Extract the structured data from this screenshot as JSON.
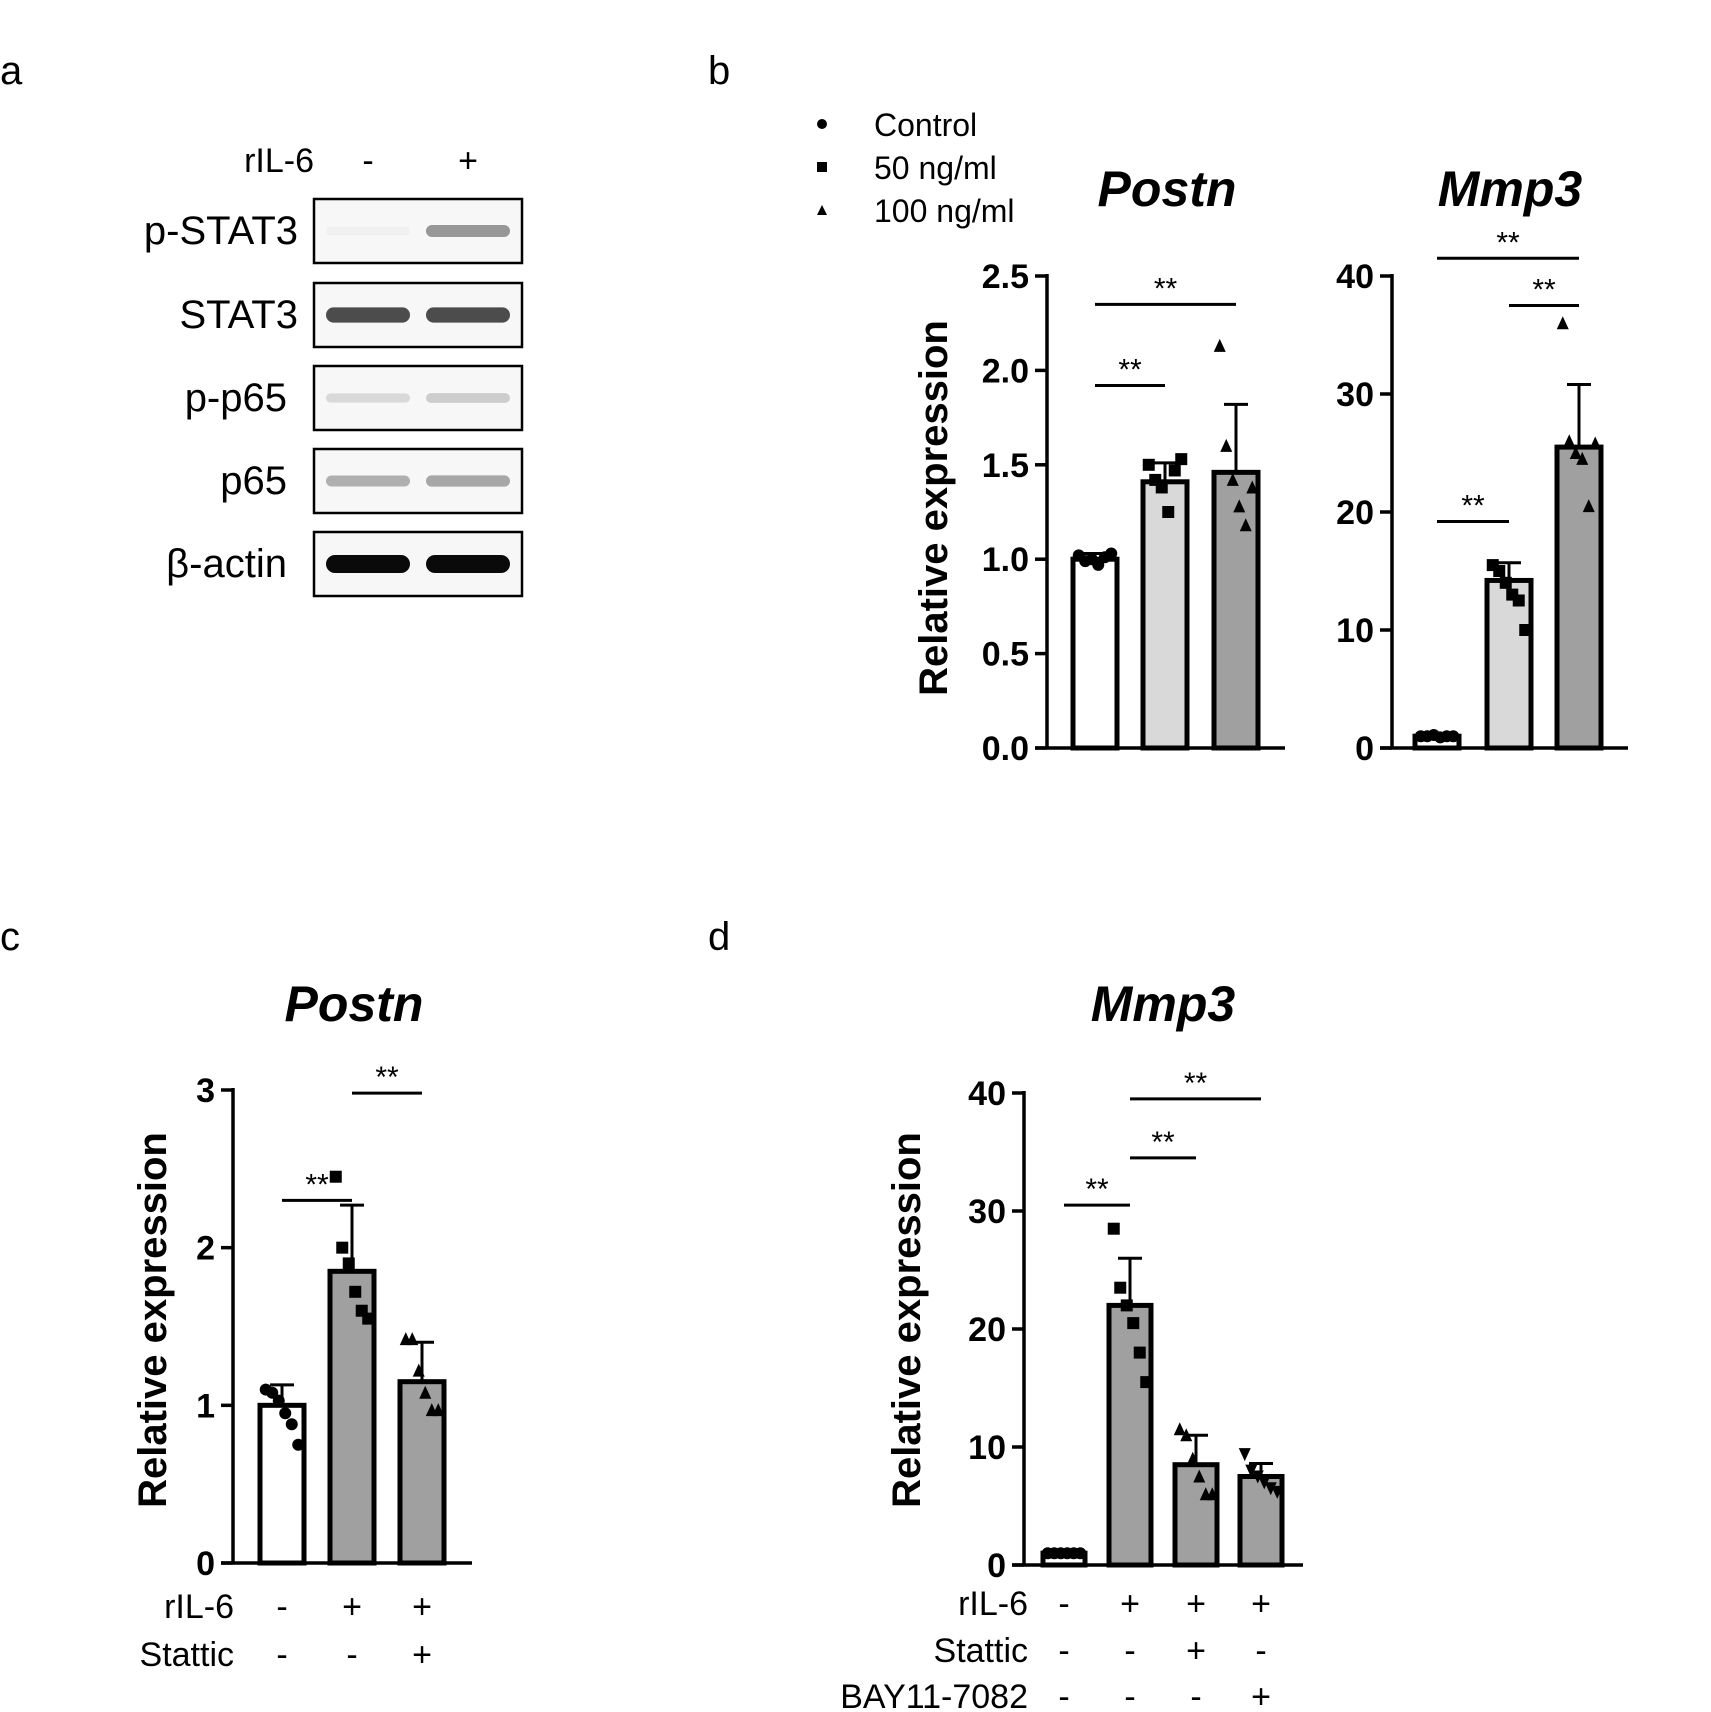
{
  "panels": {
    "a": {
      "letter": "a",
      "treatment_label": "rIL-6",
      "lane_signs": [
        "-",
        "+"
      ],
      "rows": [
        {
          "label": "p-STAT3",
          "band_intensity": [
            0.02,
            0.4
          ]
        },
        {
          "label": "STAT3",
          "band_intensity": [
            0.72,
            0.72
          ]
        },
        {
          "label": "p-p65",
          "band_intensity": [
            0.12,
            0.17
          ]
        },
        {
          "label": "p65",
          "band_intensity": [
            0.3,
            0.33
          ]
        },
        {
          "label": "β-actin",
          "band_intensity": [
            1.0,
            1.0
          ]
        }
      ]
    },
    "b": {
      "letter": "b"
    },
    "c": {
      "letter": "c"
    },
    "d": {
      "letter": "d"
    }
  },
  "legend_b": [
    {
      "marker": "circle",
      "label": "Control"
    },
    {
      "marker": "square",
      "label": "50 ng/ml"
    },
    {
      "marker": "triangle",
      "label": "100 ng/ml"
    }
  ],
  "colors": {
    "white": "#ffffff",
    "light_gray": "#d9d9d9",
    "dark_gray": "#a0a0a0",
    "ink": "#000000"
  },
  "chart_data": [
    {
      "id": "b_postn",
      "type": "bar",
      "title": "Postn",
      "ylabel": "Relative expression",
      "ylim": [
        0,
        2.5
      ],
      "yticks": [
        "0.0",
        "0.5",
        "1.0",
        "1.5",
        "2.0",
        "2.5"
      ],
      "tick_values": [
        0,
        0.5,
        1.0,
        1.5,
        2.0,
        2.5
      ],
      "bars": [
        {
          "group": "Control",
          "value": 1.0,
          "error": 0.03,
          "fill": "white",
          "marker": "circle",
          "points": [
            1.02,
            0.99,
            1.0,
            0.97,
            1.01,
            1.03
          ]
        },
        {
          "group": "50 ng/ml",
          "value": 1.41,
          "error": 0.1,
          "fill": "light_gray",
          "marker": "square",
          "points": [
            1.5,
            1.42,
            1.38,
            1.25,
            1.47,
            1.53
          ]
        },
        {
          "group": "100 ng/ml",
          "value": 1.46,
          "error": 0.36,
          "fill": "dark_gray",
          "marker": "triangle",
          "points": [
            2.13,
            1.6,
            1.42,
            1.28,
            1.18,
            1.38
          ]
        }
      ],
      "significance": [
        {
          "from": 0,
          "to": 1,
          "y": 1.92,
          "label": "**"
        },
        {
          "from": 0,
          "to": 2,
          "y": 2.35,
          "label": "**"
        }
      ]
    },
    {
      "id": "b_mmp3",
      "type": "bar",
      "title": "Mmp3",
      "ylabel": "",
      "ylim": [
        0,
        40
      ],
      "yticks": [
        "0",
        "10",
        "20",
        "30",
        "40"
      ],
      "tick_values": [
        0,
        10,
        20,
        30,
        40
      ],
      "bars": [
        {
          "group": "Control",
          "value": 1.0,
          "error": 0.1,
          "fill": "white",
          "marker": "circle",
          "points": [
            1.0,
            1.0,
            1.1,
            0.9,
            1.0,
            1.0
          ]
        },
        {
          "group": "50 ng/ml",
          "value": 14.2,
          "error": 1.5,
          "fill": "light_gray",
          "marker": "square",
          "points": [
            15.5,
            15.0,
            14.0,
            13.0,
            12.5,
            10.0
          ]
        },
        {
          "group": "100 ng/ml",
          "value": 25.5,
          "error": 5.3,
          "fill": "dark_gray",
          "marker": "triangle",
          "points": [
            36.0,
            26.0,
            25.0,
            24.5,
            20.5,
            25.8
          ]
        }
      ],
      "significance": [
        {
          "from": 0,
          "to": 1,
          "y": 19.2,
          "label": "**"
        },
        {
          "from": 1,
          "to": 2,
          "y": 37.5,
          "label": "**"
        },
        {
          "from": 0,
          "to": 2,
          "y": 41.5,
          "label": "**"
        }
      ]
    },
    {
      "id": "c_postn",
      "type": "bar",
      "title": "Postn",
      "ylabel": "Relative expression",
      "ylim": [
        0,
        3
      ],
      "yticks": [
        "0",
        "1",
        "2",
        "3"
      ],
      "tick_values": [
        0,
        1,
        2,
        3
      ],
      "bars": [
        {
          "fill": "white",
          "value": 1.0,
          "error": 0.13,
          "marker": "circle",
          "points": [
            1.1,
            1.08,
            1.03,
            0.95,
            0.88,
            0.75
          ]
        },
        {
          "fill": "dark_gray",
          "value": 1.85,
          "error": 0.42,
          "marker": "square",
          "points": [
            2.45,
            2.0,
            1.9,
            1.72,
            1.6,
            1.55
          ]
        },
        {
          "fill": "dark_gray",
          "value": 1.15,
          "error": 0.25,
          "marker": "triangle",
          "points": [
            1.42,
            1.42,
            1.22,
            1.08,
            0.97,
            0.97
          ]
        }
      ],
      "significance": [
        {
          "from": 0,
          "to": 1,
          "y": 2.3,
          "label": "**"
        },
        {
          "from": 1,
          "to": 2,
          "y": 2.98,
          "label": "**"
        }
      ],
      "conditions": [
        {
          "label": "rIL-6",
          "signs": [
            "-",
            "+",
            "+"
          ]
        },
        {
          "label": "Stattic",
          "signs": [
            "-",
            "-",
            "+"
          ]
        }
      ]
    },
    {
      "id": "d_mmp3",
      "type": "bar",
      "title": "Mmp3",
      "ylabel": "Relative expression",
      "ylim": [
        0,
        40
      ],
      "yticks": [
        "0",
        "10",
        "20",
        "30",
        "40"
      ],
      "tick_values": [
        0,
        10,
        20,
        30,
        40
      ],
      "bars": [
        {
          "fill": "white",
          "value": 1.0,
          "error": 0.1,
          "marker": "circle",
          "points": [
            1.0,
            1.0,
            1.0,
            1.0,
            1.0,
            1.0
          ]
        },
        {
          "fill": "dark_gray",
          "value": 22.0,
          "error": 4.0,
          "marker": "square",
          "points": [
            28.5,
            23.5,
            22.0,
            20.5,
            18.0,
            15.5
          ]
        },
        {
          "fill": "dark_gray",
          "value": 8.5,
          "error": 2.5,
          "marker": "triangle",
          "points": [
            11.5,
            11.0,
            9.0,
            7.5,
            6.0,
            6.0
          ]
        },
        {
          "fill": "dark_gray",
          "value": 7.5,
          "error": 1.1,
          "marker": "triangle-down",
          "points": [
            9.4,
            8.0,
            7.5,
            7.0,
            6.5,
            6.2
          ]
        }
      ],
      "significance": [
        {
          "from": 0,
          "to": 1,
          "y": 30.5,
          "label": "**"
        },
        {
          "from": 1,
          "to": 2,
          "y": 34.5,
          "label": "**"
        },
        {
          "from": 1,
          "to": 3,
          "y": 39.5,
          "label": "**"
        }
      ],
      "conditions": [
        {
          "label": "rIL-6",
          "signs": [
            "-",
            "+",
            "+",
            "+"
          ]
        },
        {
          "label": "Stattic",
          "signs": [
            "-",
            "-",
            "+",
            "-"
          ]
        },
        {
          "label": "BAY11-7082",
          "signs": [
            "-",
            "-",
            "-",
            "+"
          ]
        }
      ]
    }
  ]
}
